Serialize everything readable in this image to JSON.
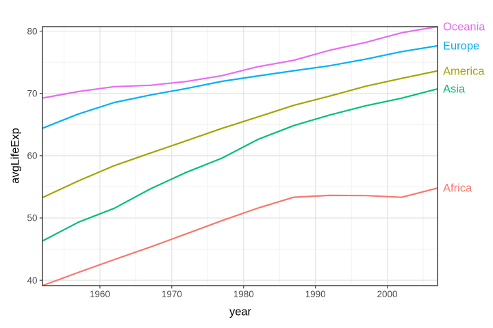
{
  "chart_data": {
    "type": "line",
    "title": "",
    "xlabel": "year",
    "ylabel": "avgLifeExp",
    "x": [
      1952,
      1957,
      1962,
      1967,
      1972,
      1977,
      1982,
      1987,
      1992,
      1997,
      2002,
      2007
    ],
    "series": [
      {
        "name": "Oceania",
        "color": "#E76BF3",
        "values": [
          69.25,
          70.3,
          71.09,
          71.31,
          71.91,
          72.85,
          74.29,
          75.32,
          76.94,
          78.19,
          79.74,
          80.72
        ]
      },
      {
        "name": "Europe",
        "color": "#00B0F6",
        "values": [
          64.41,
          66.7,
          68.54,
          69.74,
          70.78,
          71.94,
          72.81,
          73.64,
          74.44,
          75.5,
          76.7,
          77.65
        ]
      },
      {
        "name": "America",
        "color": "#A3A500",
        "values": [
          53.28,
          55.96,
          58.4,
          60.41,
          62.39,
          64.39,
          66.23,
          68.09,
          69.57,
          71.15,
          72.42,
          73.61
        ]
      },
      {
        "name": "Asia",
        "color": "#00BF7D",
        "values": [
          46.31,
          49.32,
          51.56,
          54.66,
          57.32,
          59.61,
          62.62,
          64.85,
          66.54,
          68.02,
          69.23,
          70.73
        ]
      },
      {
        "name": "Africa",
        "color": "#F8766D",
        "values": [
          39.14,
          41.27,
          43.32,
          45.33,
          47.45,
          49.58,
          51.59,
          53.34,
          53.63,
          53.6,
          53.33,
          54.81
        ]
      }
    ],
    "xlim": [
      1952,
      2007
    ],
    "ylim": [
      39.14,
      80.72
    ],
    "x_major_ticks": [
      1960,
      1970,
      1980,
      1990,
      2000
    ],
    "x_minor_ticks": [
      1955,
      1965,
      1975,
      1985,
      1995,
      2005
    ],
    "y_major_ticks": [
      40,
      50,
      60,
      70,
      80
    ],
    "y_minor_ticks": [
      45,
      55,
      65,
      75
    ],
    "grid": true,
    "legend_position": "direct-labels-right"
  },
  "style": {
    "background": "#ffffff",
    "panel_background": "#ffffff",
    "panel_border": "#333333",
    "grid_major": "#e2e2e2",
    "grid_minor": "#f0f0f0",
    "tick_mark_color": "#333333",
    "tick_label_color": "#4d4d4d",
    "axis_title_color": "#000000"
  }
}
